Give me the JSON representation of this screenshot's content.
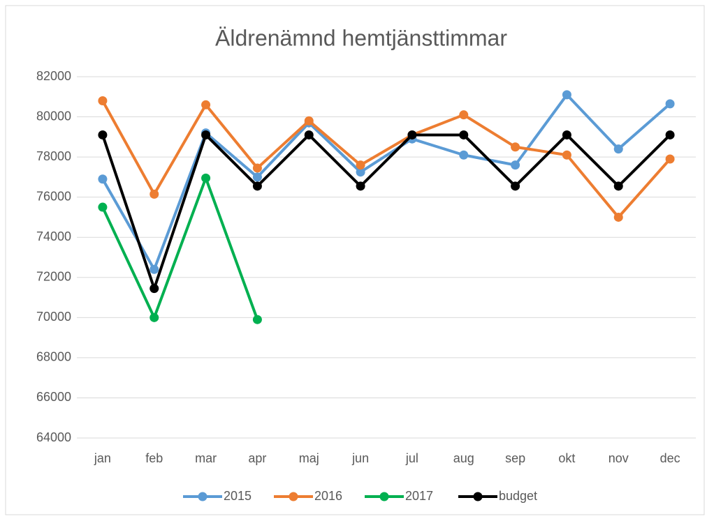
{
  "chart_data": {
    "type": "line",
    "title": "Äldrenämnd hemtjänsttimmar",
    "categories": [
      "jan",
      "feb",
      "mar",
      "apr",
      "maj",
      "jun",
      "jul",
      "aug",
      "sep",
      "okt",
      "nov",
      "dec"
    ],
    "series": [
      {
        "name": "2015",
        "color": "#5b9bd5",
        "values": [
          76900,
          72400,
          79200,
          77000,
          79700,
          77250,
          78900,
          78100,
          77600,
          81100,
          78400,
          80650
        ]
      },
      {
        "name": "2016",
        "color": "#ed7d31",
        "values": [
          80800,
          76150,
          80600,
          77450,
          79800,
          77600,
          79100,
          80100,
          78500,
          78100,
          75000,
          77900
        ]
      },
      {
        "name": "2017",
        "color": "#00b050",
        "values": [
          75500,
          70000,
          76950,
          69900,
          null,
          null,
          null,
          null,
          null,
          null,
          null,
          null
        ]
      },
      {
        "name": "budget",
        "color": "#000000",
        "values": [
          79100,
          71450,
          79100,
          76550,
          79100,
          76550,
          79100,
          79100,
          76550,
          79100,
          76550,
          79100
        ]
      }
    ],
    "ylim": [
      64000,
      82000
    ],
    "yticks": [
      64000,
      66000,
      68000,
      70000,
      72000,
      74000,
      76000,
      78000,
      80000,
      82000
    ],
    "grid": true,
    "legend": "bottom"
  }
}
